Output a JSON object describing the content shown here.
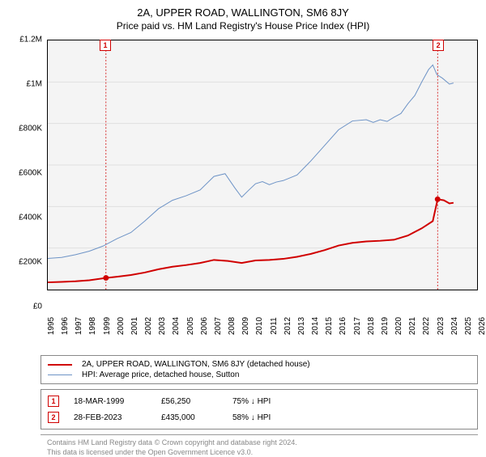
{
  "title": {
    "main": "2A, UPPER ROAD, WALLINGTON, SM6 8JY",
    "sub": "Price paid vs. HM Land Registry's House Price Index (HPI)"
  },
  "chart": {
    "type": "line",
    "background_color": "#f4f4f4",
    "border_color": "#000000",
    "grid_color": "#e0e0e0",
    "y": {
      "min": 0,
      "max": 1200000,
      "ticks": [
        {
          "v": 0,
          "label": "£0"
        },
        {
          "v": 200000,
          "label": "£200K"
        },
        {
          "v": 400000,
          "label": "£400K"
        },
        {
          "v": 600000,
          "label": "£600K"
        },
        {
          "v": 800000,
          "label": "£800K"
        },
        {
          "v": 1000000,
          "label": "£1M"
        },
        {
          "v": 1200000,
          "label": "£1.2M"
        }
      ],
      "label_fontsize": 10
    },
    "x": {
      "min": 1995,
      "max": 2026,
      "ticks": [
        1995,
        1996,
        1997,
        1998,
        1999,
        2000,
        2001,
        2002,
        2003,
        2004,
        2005,
        2006,
        2007,
        2008,
        2009,
        2010,
        2011,
        2012,
        2013,
        2014,
        2015,
        2016,
        2017,
        2018,
        2019,
        2020,
        2021,
        2022,
        2023,
        2024,
        2025,
        2026
      ],
      "label_fontsize": 10
    },
    "series": [
      {
        "name": "price_paid",
        "color": "#d00000",
        "line_width": 2,
        "points": [
          [
            1995.0,
            35000
          ],
          [
            1996.0,
            37000
          ],
          [
            1997.0,
            40000
          ],
          [
            1998.0,
            45000
          ],
          [
            1999.2,
            56250
          ],
          [
            2000.0,
            62000
          ],
          [
            2001.0,
            70000
          ],
          [
            2002.0,
            82000
          ],
          [
            2003.0,
            98000
          ],
          [
            2004.0,
            110000
          ],
          [
            2005.0,
            118000
          ],
          [
            2006.0,
            128000
          ],
          [
            2007.0,
            143000
          ],
          [
            2008.0,
            138000
          ],
          [
            2009.0,
            128000
          ],
          [
            2010.0,
            140000
          ],
          [
            2011.0,
            143000
          ],
          [
            2012.0,
            148000
          ],
          [
            2013.0,
            158000
          ],
          [
            2014.0,
            172000
          ],
          [
            2015.0,
            190000
          ],
          [
            2016.0,
            212000
          ],
          [
            2017.0,
            225000
          ],
          [
            2018.0,
            232000
          ],
          [
            2019.0,
            235000
          ],
          [
            2020.0,
            240000
          ],
          [
            2021.0,
            260000
          ],
          [
            2022.0,
            295000
          ],
          [
            2022.8,
            330000
          ],
          [
            2023.15,
            435000
          ],
          [
            2023.6,
            430000
          ],
          [
            2024.0,
            415000
          ],
          [
            2024.3,
            418000
          ]
        ],
        "markers": [
          {
            "x": 1999.2,
            "y": 56250,
            "id": "1"
          },
          {
            "x": 2023.15,
            "y": 435000,
            "id": "2"
          }
        ]
      },
      {
        "name": "hpi",
        "color": "#6d93c6",
        "line_width": 1,
        "points": [
          [
            1995.0,
            150000
          ],
          [
            1996.0,
            155000
          ],
          [
            1997.0,
            168000
          ],
          [
            1998.0,
            185000
          ],
          [
            1999.0,
            210000
          ],
          [
            2000.0,
            245000
          ],
          [
            2001.0,
            275000
          ],
          [
            2002.0,
            330000
          ],
          [
            2003.0,
            390000
          ],
          [
            2004.0,
            430000
          ],
          [
            2005.0,
            452000
          ],
          [
            2006.0,
            480000
          ],
          [
            2007.0,
            545000
          ],
          [
            2007.8,
            558000
          ],
          [
            2008.5,
            490000
          ],
          [
            2009.0,
            445000
          ],
          [
            2009.5,
            478000
          ],
          [
            2010.0,
            510000
          ],
          [
            2010.5,
            520000
          ],
          [
            2011.0,
            505000
          ],
          [
            2011.5,
            518000
          ],
          [
            2012.0,
            525000
          ],
          [
            2013.0,
            552000
          ],
          [
            2014.0,
            620000
          ],
          [
            2015.0,
            695000
          ],
          [
            2016.0,
            770000
          ],
          [
            2017.0,
            812000
          ],
          [
            2018.0,
            818000
          ],
          [
            2018.5,
            805000
          ],
          [
            2019.0,
            818000
          ],
          [
            2019.5,
            810000
          ],
          [
            2020.0,
            830000
          ],
          [
            2020.5,
            848000
          ],
          [
            2021.0,
            895000
          ],
          [
            2021.5,
            935000
          ],
          [
            2022.0,
            1000000
          ],
          [
            2022.5,
            1060000
          ],
          [
            2022.8,
            1082000
          ],
          [
            2023.1,
            1035000
          ],
          [
            2023.5,
            1018000
          ],
          [
            2024.0,
            990000
          ],
          [
            2024.3,
            995000
          ]
        ]
      }
    ],
    "annotations": [
      {
        "id": "1",
        "x": 1999.2,
        "top": true
      },
      {
        "id": "2",
        "x": 2023.15,
        "top": true
      }
    ]
  },
  "legend": {
    "items": [
      {
        "color": "#d00000",
        "width": 2,
        "label": "2A, UPPER ROAD, WALLINGTON, SM6 8JY (detached house)"
      },
      {
        "color": "#6d93c6",
        "width": 1,
        "label": "HPI: Average price, detached house, Sutton"
      }
    ]
  },
  "transactions": [
    {
      "id": "1",
      "date": "18-MAR-1999",
      "price": "£56,250",
      "pct": "75% ↓ HPI"
    },
    {
      "id": "2",
      "date": "28-FEB-2023",
      "price": "£435,000",
      "pct": "58% ↓ HPI"
    }
  ],
  "footnote": {
    "line1": "Contains HM Land Registry data © Crown copyright and database right 2024.",
    "line2": "This data is licensed under the Open Government Licence v3.0."
  }
}
